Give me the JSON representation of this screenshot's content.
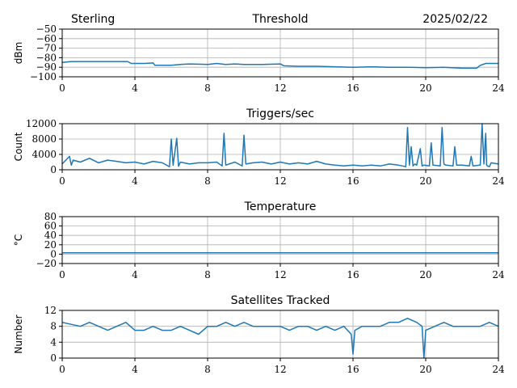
{
  "header": {
    "station": "Sterling",
    "date": "2025/02/22"
  },
  "colors": {
    "series": "#1f77b4",
    "grid": "#b0b0b0",
    "axis": "#000000"
  },
  "chart_data": [
    {
      "type": "line",
      "title": "Threshold",
      "ylabel": "dBm",
      "xlabel": "",
      "xlim": [
        0,
        24
      ],
      "ylim": [
        -100,
        -50
      ],
      "xticks": [
        0,
        4,
        8,
        12,
        16,
        20,
        24
      ],
      "yticks": [
        -100,
        -90,
        -80,
        -70,
        -60,
        -50
      ],
      "grid": true,
      "series": [
        {
          "x": [
            0,
            0.5,
            1,
            2,
            3,
            3.6,
            3.8,
            4.5,
            5,
            5.1,
            6,
            6.5,
            7,
            8,
            8.5,
            9,
            9.5,
            10,
            11,
            12,
            12.2,
            13,
            14,
            15,
            16,
            17,
            18,
            19,
            20,
            21,
            22,
            22.8,
            23,
            23.3,
            24
          ],
          "y": [
            -85,
            -84,
            -84,
            -84,
            -84,
            -84,
            -86,
            -86,
            -85.5,
            -88,
            -88,
            -87,
            -86.5,
            -87,
            -86,
            -87,
            -86.5,
            -87,
            -87,
            -86.5,
            -88.5,
            -89,
            -89,
            -89.5,
            -90,
            -89.5,
            -90,
            -90,
            -90.5,
            -90,
            -91,
            -91,
            -88,
            -86,
            -86
          ]
        }
      ]
    },
    {
      "type": "line",
      "title": "Triggers/sec",
      "ylabel": "Count",
      "xlabel": "",
      "xlim": [
        0,
        24
      ],
      "ylim": [
        0,
        12000
      ],
      "xticks": [
        0,
        4,
        8,
        12,
        16,
        20,
        24
      ],
      "yticks": [
        0,
        4000,
        8000,
        12000
      ],
      "ytick_labels": [
        "0",
        "4000",
        "8000",
        "12000"
      ],
      "grid": true,
      "series": [
        {
          "x": [
            0,
            0.4,
            0.5,
            0.6,
            1,
            1.5,
            2,
            2.5,
            3,
            3.5,
            4,
            4.5,
            5,
            5.5,
            5.9,
            6.0,
            6.1,
            6.3,
            6.4,
            6.5,
            7,
            7.5,
            8,
            8.5,
            8.8,
            8.9,
            9.0,
            9.5,
            9.9,
            10.0,
            10.1,
            10.5,
            11,
            11.5,
            12,
            12.5,
            13,
            13.5,
            14,
            14.5,
            15,
            15.5,
            16,
            16.5,
            17,
            17.5,
            18,
            18.5,
            18.9,
            19.0,
            19.1,
            19.2,
            19.3,
            19.4,
            19.5,
            19.7,
            19.8,
            19.9,
            20.2,
            20.3,
            20.4,
            20.8,
            20.9,
            21.0,
            21.1,
            21.5,
            21.6,
            21.7,
            22,
            22.4,
            22.5,
            22.6,
            23,
            23.1,
            23.2,
            23.3,
            23.35,
            23.4,
            23.5,
            23.6,
            24
          ],
          "y": [
            1500,
            3500,
            1200,
            2500,
            2000,
            3000,
            1800,
            2500,
            2200,
            1800,
            2000,
            1500,
            2200,
            1800,
            800,
            8000,
            1200,
            8200,
            900,
            2000,
            1500,
            1800,
            1800,
            2000,
            1000,
            9500,
            1200,
            2000,
            1000,
            9000,
            1500,
            1800,
            2000,
            1500,
            2000,
            1500,
            1800,
            1500,
            2200,
            1500,
            1200,
            1000,
            1200,
            1000,
            1200,
            1000,
            1500,
            1200,
            800,
            11000,
            1200,
            6000,
            1000,
            1500,
            1200,
            5500,
            1000,
            1200,
            1000,
            7000,
            1200,
            1000,
            11000,
            1500,
            1200,
            1000,
            6000,
            1200,
            1200,
            1000,
            3500,
            1000,
            1200,
            12000,
            1500,
            9500,
            1200,
            1000,
            800,
            1800,
            1500
          ]
        }
      ]
    },
    {
      "type": "line",
      "title": "Temperature",
      "ylabel": "°C",
      "xlabel": "",
      "xlim": [
        0,
        24
      ],
      "ylim": [
        -20,
        80
      ],
      "xticks": [
        0,
        4,
        8,
        12,
        16,
        20,
        24
      ],
      "yticks": [
        -20,
        0,
        20,
        40,
        60,
        80
      ],
      "grid": true,
      "series": [
        {
          "x": [
            0,
            24
          ],
          "y": [
            3,
            3
          ]
        }
      ]
    },
    {
      "type": "line",
      "title": "Satellites Tracked",
      "ylabel": "Number",
      "xlabel": "",
      "xlim": [
        0,
        24
      ],
      "ylim": [
        0,
        12
      ],
      "xticks": [
        0,
        4,
        8,
        12,
        16,
        20,
        24
      ],
      "yticks": [
        0,
        4,
        8,
        12
      ],
      "grid": true,
      "series": [
        {
          "x": [
            0,
            1,
            1.5,
            2,
            2.5,
            3,
            3.5,
            4,
            4.5,
            5,
            5.5,
            6,
            6.5,
            7,
            7.5,
            8,
            8.5,
            9,
            9.5,
            10,
            10.5,
            11,
            11.5,
            12,
            12.5,
            13,
            13.5,
            14,
            14.5,
            15,
            15.5,
            15.9,
            16.0,
            16.1,
            16.5,
            17,
            17.5,
            18,
            18.5,
            19,
            19.5,
            19.8,
            19.9,
            20.0,
            20.5,
            21,
            21.5,
            22,
            22.5,
            23,
            23.5,
            24
          ],
          "y": [
            9,
            8,
            9,
            8,
            7,
            8,
            9,
            7,
            7,
            8,
            7,
            7,
            8,
            7,
            6,
            8,
            8,
            9,
            8,
            9,
            8,
            8,
            8,
            8,
            7,
            8,
            8,
            7,
            8,
            7,
            8,
            6,
            1,
            7,
            8,
            8,
            8,
            9,
            9,
            10,
            9,
            8,
            0,
            7,
            8,
            9,
            8,
            8,
            8,
            8,
            9,
            8
          ]
        }
      ]
    }
  ]
}
